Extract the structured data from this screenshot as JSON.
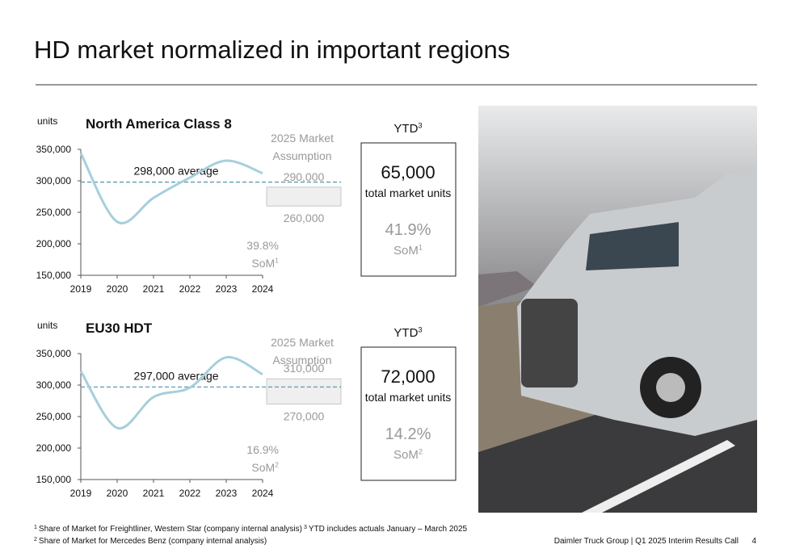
{
  "title": "HD market normalized in important regions",
  "chart_data": [
    {
      "type": "line",
      "title": "North America Class 8",
      "y_label": "units",
      "categories": [
        "2019",
        "2020",
        "2021",
        "2022",
        "2023",
        "2024"
      ],
      "values": [
        344000,
        235000,
        273000,
        305000,
        332000,
        312000
      ],
      "color": "#a6cfdc",
      "ylim": [
        150000,
        350000
      ],
      "yticks": [
        {
          "value": 150000,
          "label": "150,000"
        },
        {
          "value": 200000,
          "label": "200,000"
        },
        {
          "value": 250000,
          "label": "250,000"
        },
        {
          "value": 300000,
          "label": "300,000"
        },
        {
          "value": 350000,
          "label": "350,000"
        }
      ],
      "average": 298000,
      "average_label": "298,000 average",
      "average_color": "#5b9ab8",
      "assumption": {
        "title": "2025 Market Assumption",
        "values": [
          290000,
          260000
        ],
        "value_labels": [
          "290,000",
          "260,000"
        ]
      },
      "share": "39.8%",
      "share_label": "SoM",
      "share_note": "1"
    },
    {
      "type": "line",
      "title": "EU30 HDT",
      "y_label": "units",
      "categories": [
        "2019",
        "2020",
        "2021",
        "2022",
        "2023",
        "2024"
      ],
      "values": [
        322000,
        232000,
        281000,
        296000,
        344000,
        317000
      ],
      "color": "#a6cfdc",
      "ylim": [
        150000,
        350000
      ],
      "yticks": [
        {
          "value": 150000,
          "label": "150,000"
        },
        {
          "value": 200000,
          "label": "200,000"
        },
        {
          "value": 250000,
          "label": "250,000"
        },
        {
          "value": 300000,
          "label": "300,000"
        },
        {
          "value": 350000,
          "label": "350,000"
        }
      ],
      "average": 297000,
      "average_label": "297,000 average",
      "average_color": "#5b9ab8",
      "assumption": {
        "title": "2025 Market Assumption",
        "values": [
          310000,
          270000
        ],
        "value_labels": [
          "310,000",
          "270,000"
        ]
      },
      "share": "16.9%",
      "share_label": "SoM",
      "share_note": "2"
    }
  ],
  "ytd": [
    {
      "label": "YTD",
      "note": "3",
      "units": "65,000",
      "units_label": "total market units",
      "share": "41.9%",
      "share_label": "SoM",
      "share_note": "1"
    },
    {
      "label": "YTD",
      "note": "3",
      "units": "72,000",
      "units_label": "total market units",
      "share": "14.2%",
      "share_label": "SoM",
      "share_note": "2"
    }
  ],
  "footnotes": [
    {
      "mark": "1",
      "text": "Share of Market for Freightliner, Western Star (company internal analysis)"
    },
    {
      "mark": "2",
      "text": "Share of Market for Mercedes Benz (company internal analysis)"
    },
    {
      "mark": "3",
      "text": "YTD includes actuals January – March 2025"
    }
  ],
  "footer": "Daimler Truck Group | Q1 2025 Interim Results Call",
  "page": "4"
}
